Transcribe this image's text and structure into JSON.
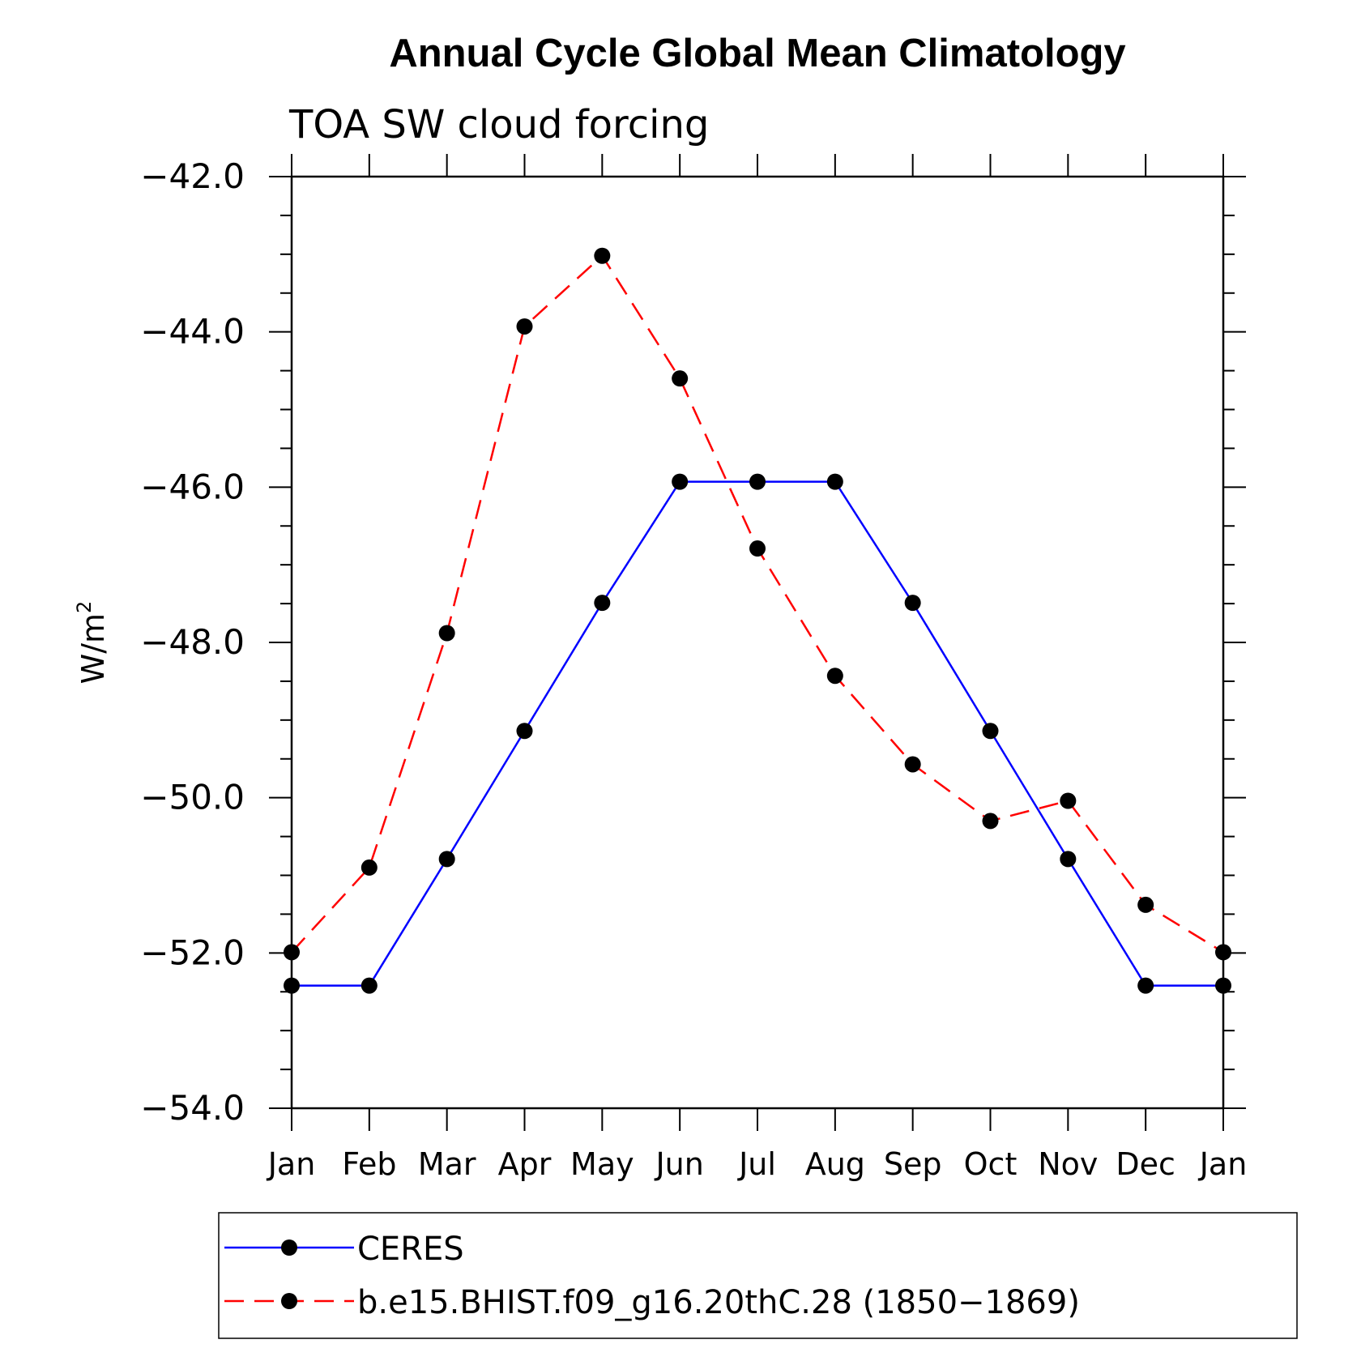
{
  "chart_data": {
    "type": "line",
    "title": "Annual Cycle Global Mean Climatology",
    "subtitle": "TOA SW cloud forcing",
    "ylabel": "W/m",
    "ylabel_sup": "2",
    "xlabel": "",
    "categories": [
      "Jan",
      "Feb",
      "Mar",
      "Apr",
      "May",
      "Jun",
      "Jul",
      "Aug",
      "Sep",
      "Oct",
      "Nov",
      "Dec",
      "Jan"
    ],
    "ylim": [
      -54.0,
      -42.0
    ],
    "yticks": [
      -42.0,
      -44.0,
      -46.0,
      -48.0,
      -50.0,
      -52.0,
      -54.0
    ],
    "ytick_labels": [
      "−42.0",
      "−44.0",
      "−46.0",
      "−48.0",
      "−50.0",
      "−52.0",
      "−54.0"
    ],
    "grid": false,
    "legend_position": "bottom",
    "series": [
      {
        "name": "CERES",
        "color": "#0000ff",
        "dash": "solid",
        "values": [
          -52.42,
          -52.42,
          -50.79,
          -49.14,
          -47.49,
          -45.93,
          -45.93,
          -45.93,
          -47.49,
          -49.14,
          -50.79,
          -52.42,
          -52.42
        ]
      },
      {
        "name": "b.e15.BHIST.f09_g16.20thC.28 (1850−1869)",
        "color": "#ff0000",
        "dash": "dashed",
        "values": [
          -51.99,
          -50.9,
          -47.88,
          -43.93,
          -43.02,
          -44.6,
          -46.79,
          -48.43,
          -49.57,
          -50.3,
          -50.04,
          -51.38,
          -51.99
        ]
      }
    ]
  }
}
